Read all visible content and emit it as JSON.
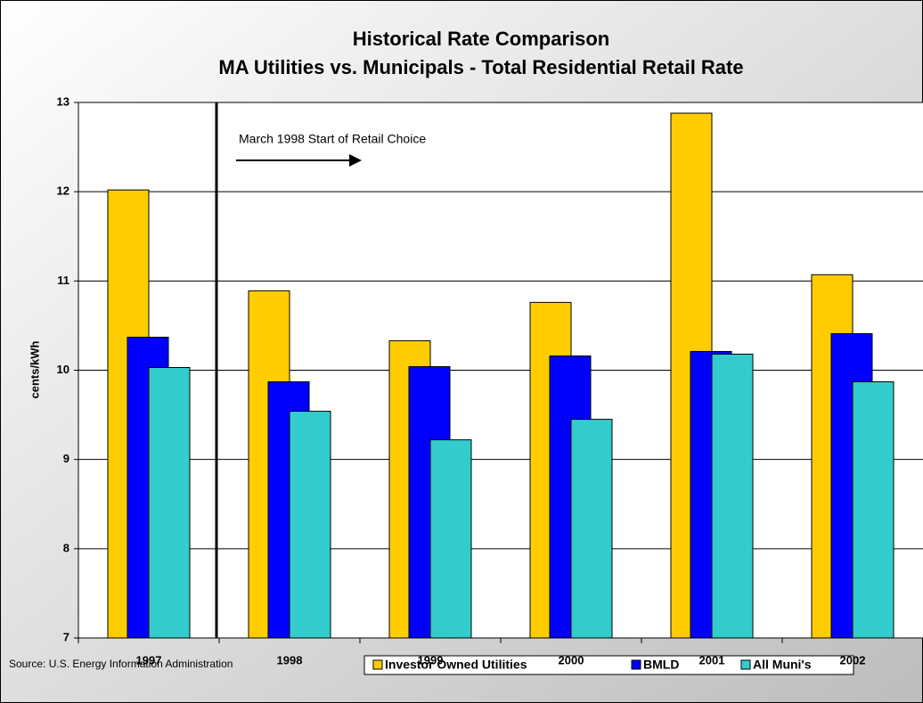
{
  "chart_data": {
    "type": "bar",
    "title": "Historical Rate Comparison",
    "subtitle": "MA Utilities vs. Municipals - Total Residential Retail Rate",
    "y_label": "cents/kWh",
    "annotation": "March 1998 Start of Retail Choice",
    "source": "Source: U.S. Energy Information Administration",
    "categories": [
      "1997",
      "1998",
      "1999",
      "2000",
      "2001",
      "2002"
    ],
    "series": [
      {
        "name": "Investor Owned Utilities",
        "color": "#ffcc00",
        "values": [
          12.02,
          10.89,
          10.33,
          10.76,
          12.88,
          11.07
        ]
      },
      {
        "name": "BMLD",
        "color": "#0000ff",
        "values": [
          10.37,
          9.87,
          10.04,
          10.16,
          10.21,
          10.41
        ]
      },
      {
        "name": "All Muni's",
        "color": "#33cccc",
        "values": [
          10.03,
          9.54,
          9.22,
          9.45,
          10.18,
          9.87
        ]
      }
    ],
    "ylim": [
      7,
      13
    ],
    "yticks": [
      7,
      8,
      9,
      10,
      11,
      12,
      13
    ],
    "grid": true
  }
}
